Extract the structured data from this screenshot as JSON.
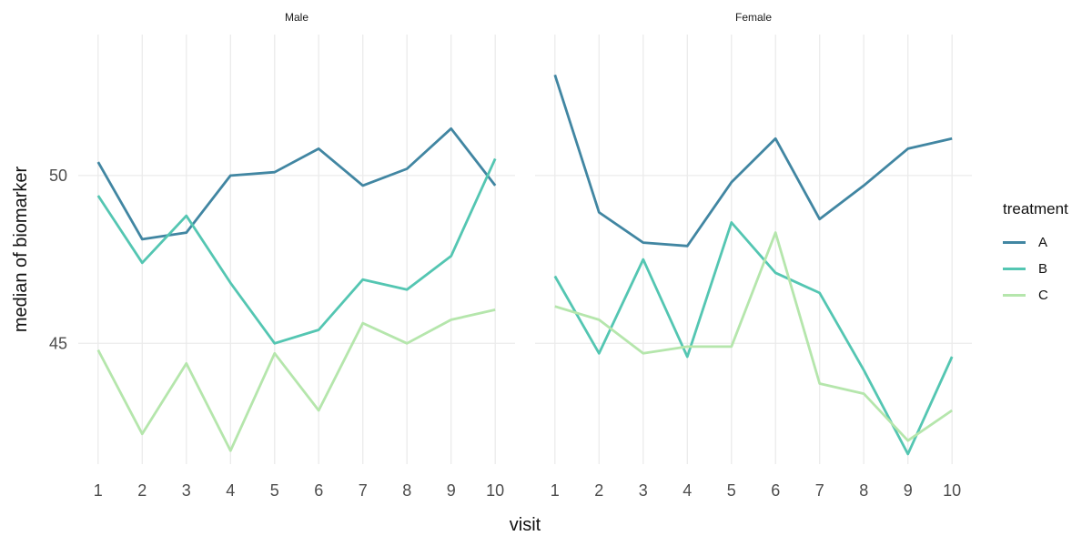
{
  "figure": {
    "background": "#FFFFFF"
  },
  "chart_data": {
    "type": "line",
    "title": "",
    "xlabel": "visit",
    "ylabel": "median of biomarker",
    "facet_variable_values": [
      "Male",
      "Female"
    ],
    "x": [
      1,
      2,
      3,
      4,
      5,
      6,
      7,
      8,
      9,
      10
    ],
    "x_tick_labels": [
      "1",
      "2",
      "3",
      "4",
      "5",
      "6",
      "7",
      "8",
      "9",
      "10"
    ],
    "y_ticks": [
      45,
      50
    ],
    "y_tick_labels": [
      "45",
      "50"
    ],
    "xlim": [
      0.55,
      10.45
    ],
    "ylim": [
      41.4,
      54.2
    ],
    "grid": true,
    "gridline_color": "#EBEBEB",
    "tick_label_color": "#4D4D4D",
    "axis_title_color": "#111111",
    "strip_label_color": "#1A1A1A",
    "line_width": 2.8,
    "legend": {
      "title": "treatment",
      "position": "right"
    },
    "series": [
      {
        "name": "A",
        "color": "#4186A2"
      },
      {
        "name": "B",
        "color": "#54C6B2"
      },
      {
        "name": "C",
        "color": "#B5E6AC"
      }
    ],
    "facets": [
      {
        "label": "Male",
        "values": {
          "A": [
            50.4,
            48.1,
            48.3,
            50.0,
            50.1,
            50.8,
            49.7,
            50.2,
            51.4,
            49.7
          ],
          "B": [
            49.4,
            47.4,
            48.8,
            46.8,
            45.0,
            45.4,
            46.9,
            46.6,
            47.6,
            50.5
          ],
          "C": [
            44.8,
            42.3,
            44.4,
            41.8,
            44.7,
            43.0,
            45.6,
            45.0,
            45.7,
            46.0
          ]
        }
      },
      {
        "label": "Female",
        "values": {
          "A": [
            53.0,
            48.9,
            48.0,
            47.9,
            49.8,
            51.1,
            48.7,
            49.7,
            50.8,
            51.1
          ],
          "B": [
            47.0,
            44.7,
            47.5,
            44.6,
            48.6,
            47.1,
            46.5,
            44.2,
            41.7,
            44.6
          ],
          "C": [
            46.1,
            45.7,
            44.7,
            44.9,
            44.9,
            48.3,
            43.8,
            43.5,
            42.1,
            43.0
          ]
        }
      }
    ]
  }
}
